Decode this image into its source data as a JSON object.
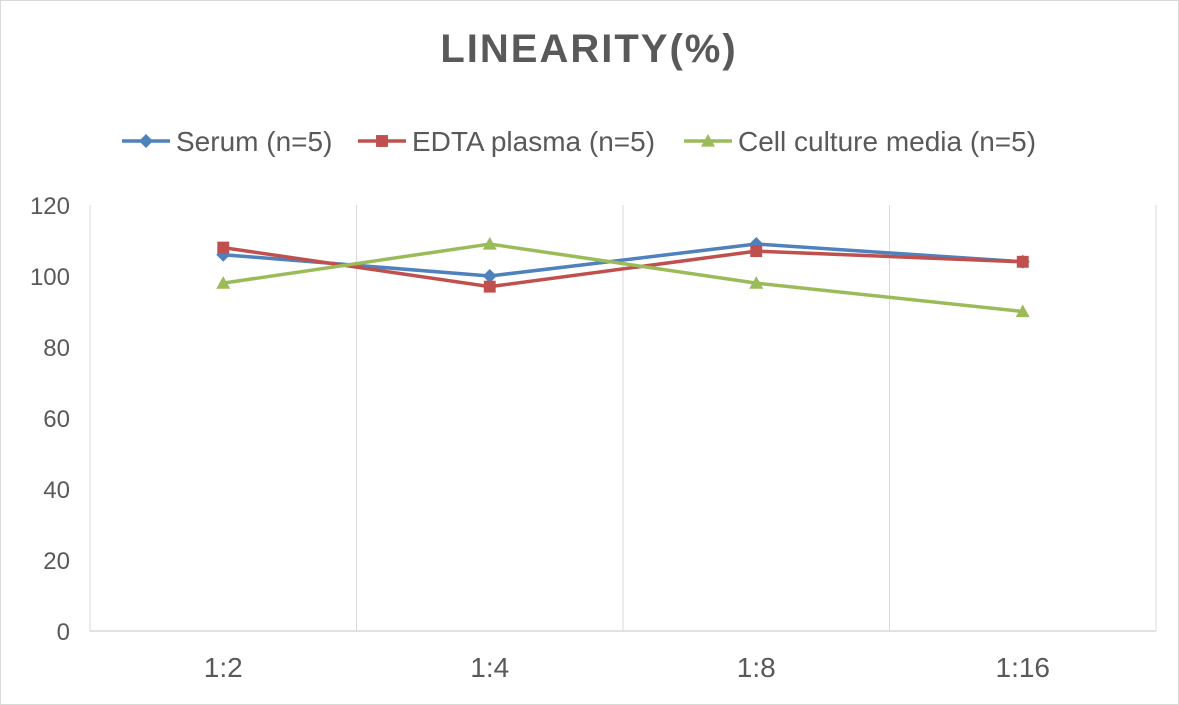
{
  "chart_data": {
    "type": "line",
    "title": "LINEARITY(%)",
    "xlabel": "",
    "ylabel": "",
    "categories": [
      "1:2",
      "1:4",
      "1:8",
      "1:16"
    ],
    "ylim": [
      0,
      120
    ],
    "yticks": [
      "0",
      "20",
      "40",
      "60",
      "80",
      "100",
      "120"
    ],
    "grid": "vertical",
    "legend_position": "top",
    "series": [
      {
        "name": "Serum (n=5)",
        "values": [
          106,
          100,
          109,
          104
        ],
        "color": "#4f81bd",
        "marker": "diamond"
      },
      {
        "name": "EDTA plasma (n=5)",
        "values": [
          108,
          97,
          107,
          104
        ],
        "color": "#c0504d",
        "marker": "square"
      },
      {
        "name": "Cell culture media (n=5)",
        "values": [
          98,
          109,
          98,
          90
        ],
        "color": "#9bbb59",
        "marker": "triangle"
      }
    ]
  }
}
